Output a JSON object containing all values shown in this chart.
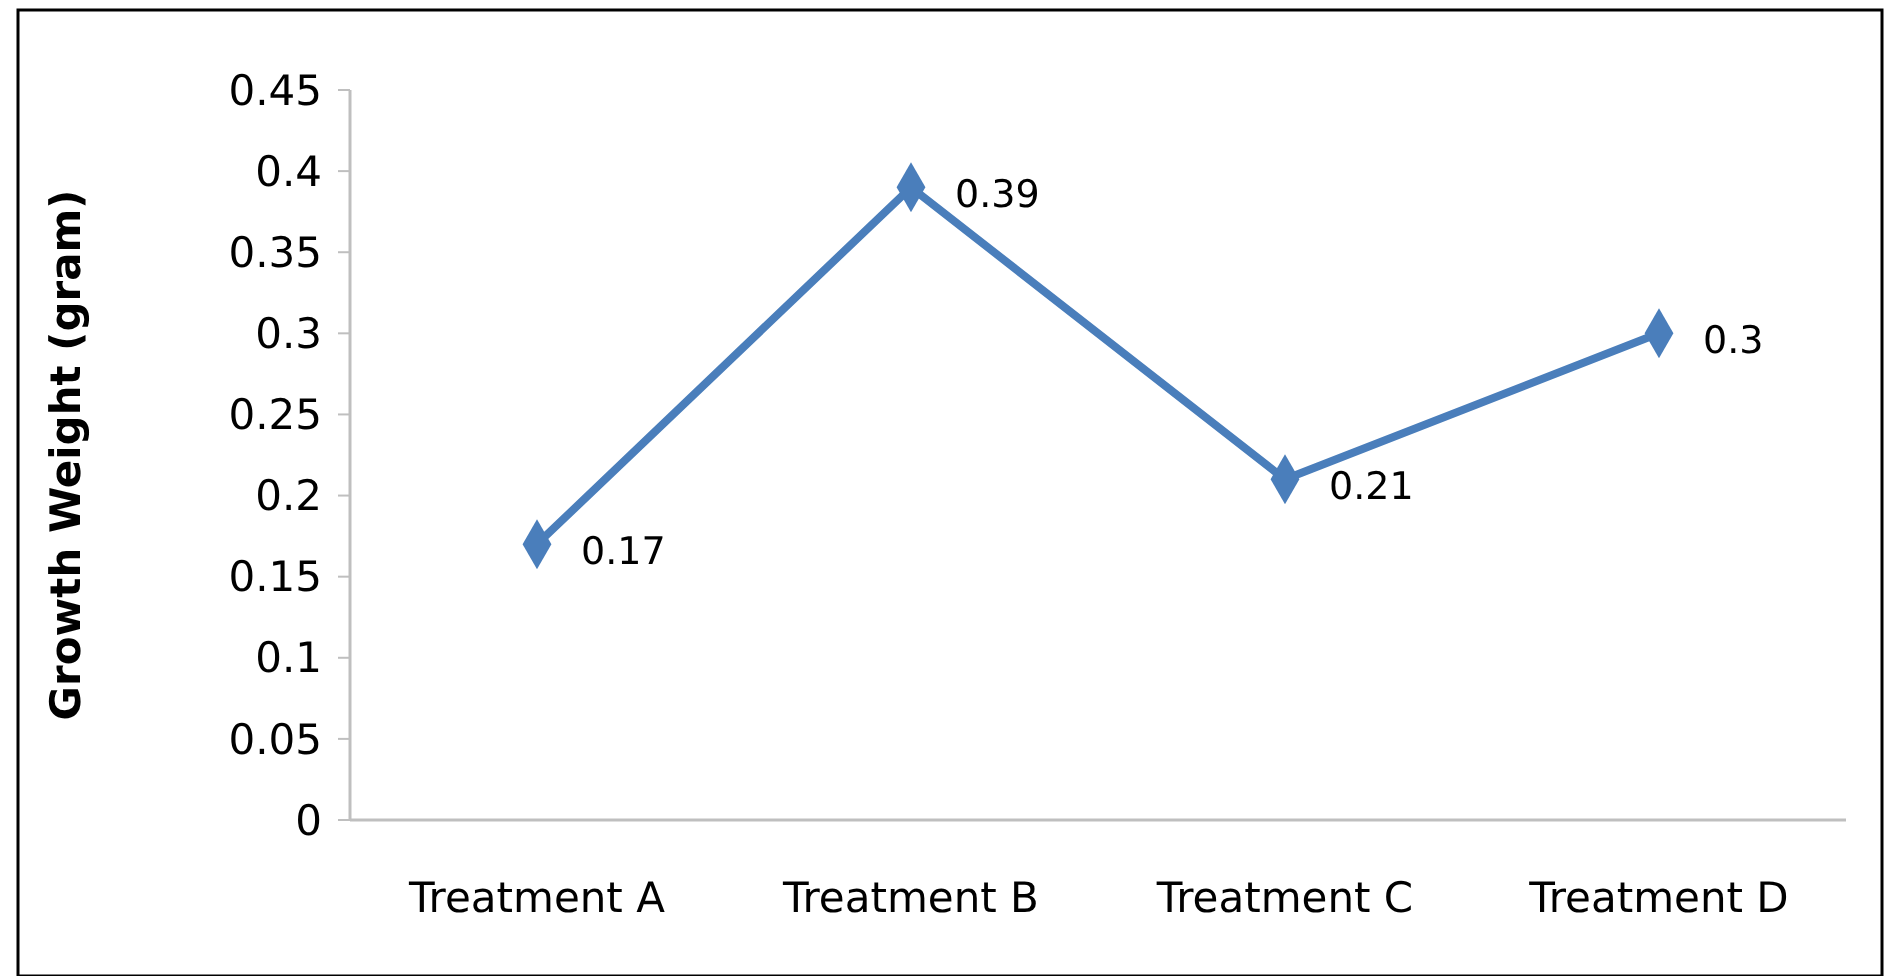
{
  "chart_data": {
    "type": "line",
    "ylabel": "Growth Weight (gram)",
    "categories": [
      "Treatment A",
      "Treatment B",
      "Treatment C",
      "Treatment D"
    ],
    "series": [
      {
        "color": "#4a7ebb",
        "values": [
          0.17,
          0.39,
          0.21,
          0.3
        ]
      }
    ],
    "ylim": [
      0,
      0.45
    ],
    "yticks": [
      0,
      0.05,
      0.1,
      0.15,
      0.2,
      0.25,
      0.3,
      0.35,
      0.4,
      0.45
    ],
    "grid": false,
    "marker": "diamond",
    "line_style": "solid",
    "data_labels": true
  }
}
